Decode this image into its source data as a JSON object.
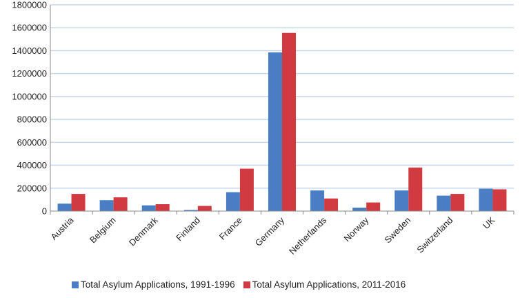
{
  "chart_data": {
    "type": "bar",
    "title": "",
    "xlabel": "",
    "ylabel": "",
    "ylim": [
      0,
      1800000
    ],
    "yticks": [
      "0",
      "200000",
      "400000",
      "600000",
      "800000",
      "1000000",
      "1200000",
      "1400000",
      "1600000",
      "1800000"
    ],
    "grid": true,
    "legend_position": "bottom",
    "categories": [
      "Austria",
      "Belgium",
      "Denmark",
      "Finland",
      "France",
      "Germany",
      "Netherlands",
      "Norway",
      "Sweden",
      "Switzerland",
      "UK"
    ],
    "series": [
      {
        "name": "Total Asylum Applications, 1991-1996",
        "color": "#4a7ec4",
        "values": [
          65000,
          95000,
          50000,
          10000,
          165000,
          1385000,
          180000,
          30000,
          180000,
          135000,
          195000
        ]
      },
      {
        "name": "Total Asylum Applications, 2011-2016",
        "color": "#d13a40",
        "values": [
          150000,
          120000,
          60000,
          45000,
          370000,
          1555000,
          110000,
          75000,
          380000,
          150000,
          190000
        ]
      }
    ]
  }
}
